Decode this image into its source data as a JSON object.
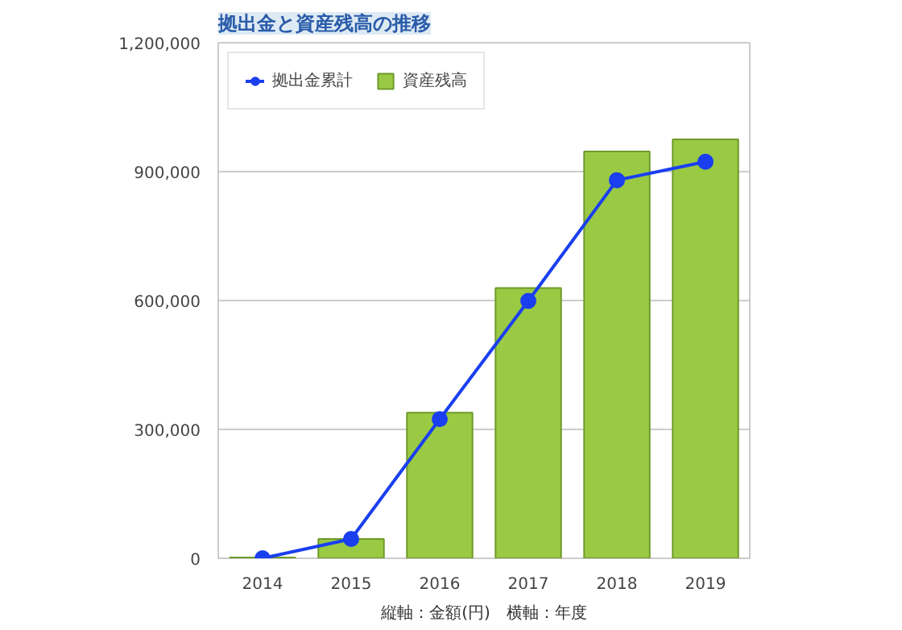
{
  "chart_data": {
    "type": "bar",
    "title": "拠出金と資産残高の推移",
    "categories": [
      "2014",
      "2015",
      "2016",
      "2017",
      "2018",
      "2019"
    ],
    "series": [
      {
        "name": "拠出金累計",
        "type": "line",
        "color": "#1a3ff0",
        "values": [
          0,
          45000,
          324000,
          599000,
          880000,
          923000
        ]
      },
      {
        "name": "資産残高",
        "color": "#9aca44",
        "values": [
          2000,
          45000,
          339000,
          629000,
          947000,
          975000
        ]
      }
    ],
    "ylim": [
      0,
      1200000
    ],
    "yticks": [
      {
        "value": 0,
        "label": "0"
      },
      {
        "value": 300000,
        "label": "300,000"
      },
      {
        "value": 600000,
        "label": "600,000"
      },
      {
        "value": 900000,
        "label": "900,000"
      },
      {
        "value": 1200000,
        "label": "1,200,000"
      }
    ],
    "grid": "y",
    "legend": "top left",
    "marker": "circle",
    "annotations": [
      "縦軸：金額(円)　横軸：年度"
    ]
  }
}
